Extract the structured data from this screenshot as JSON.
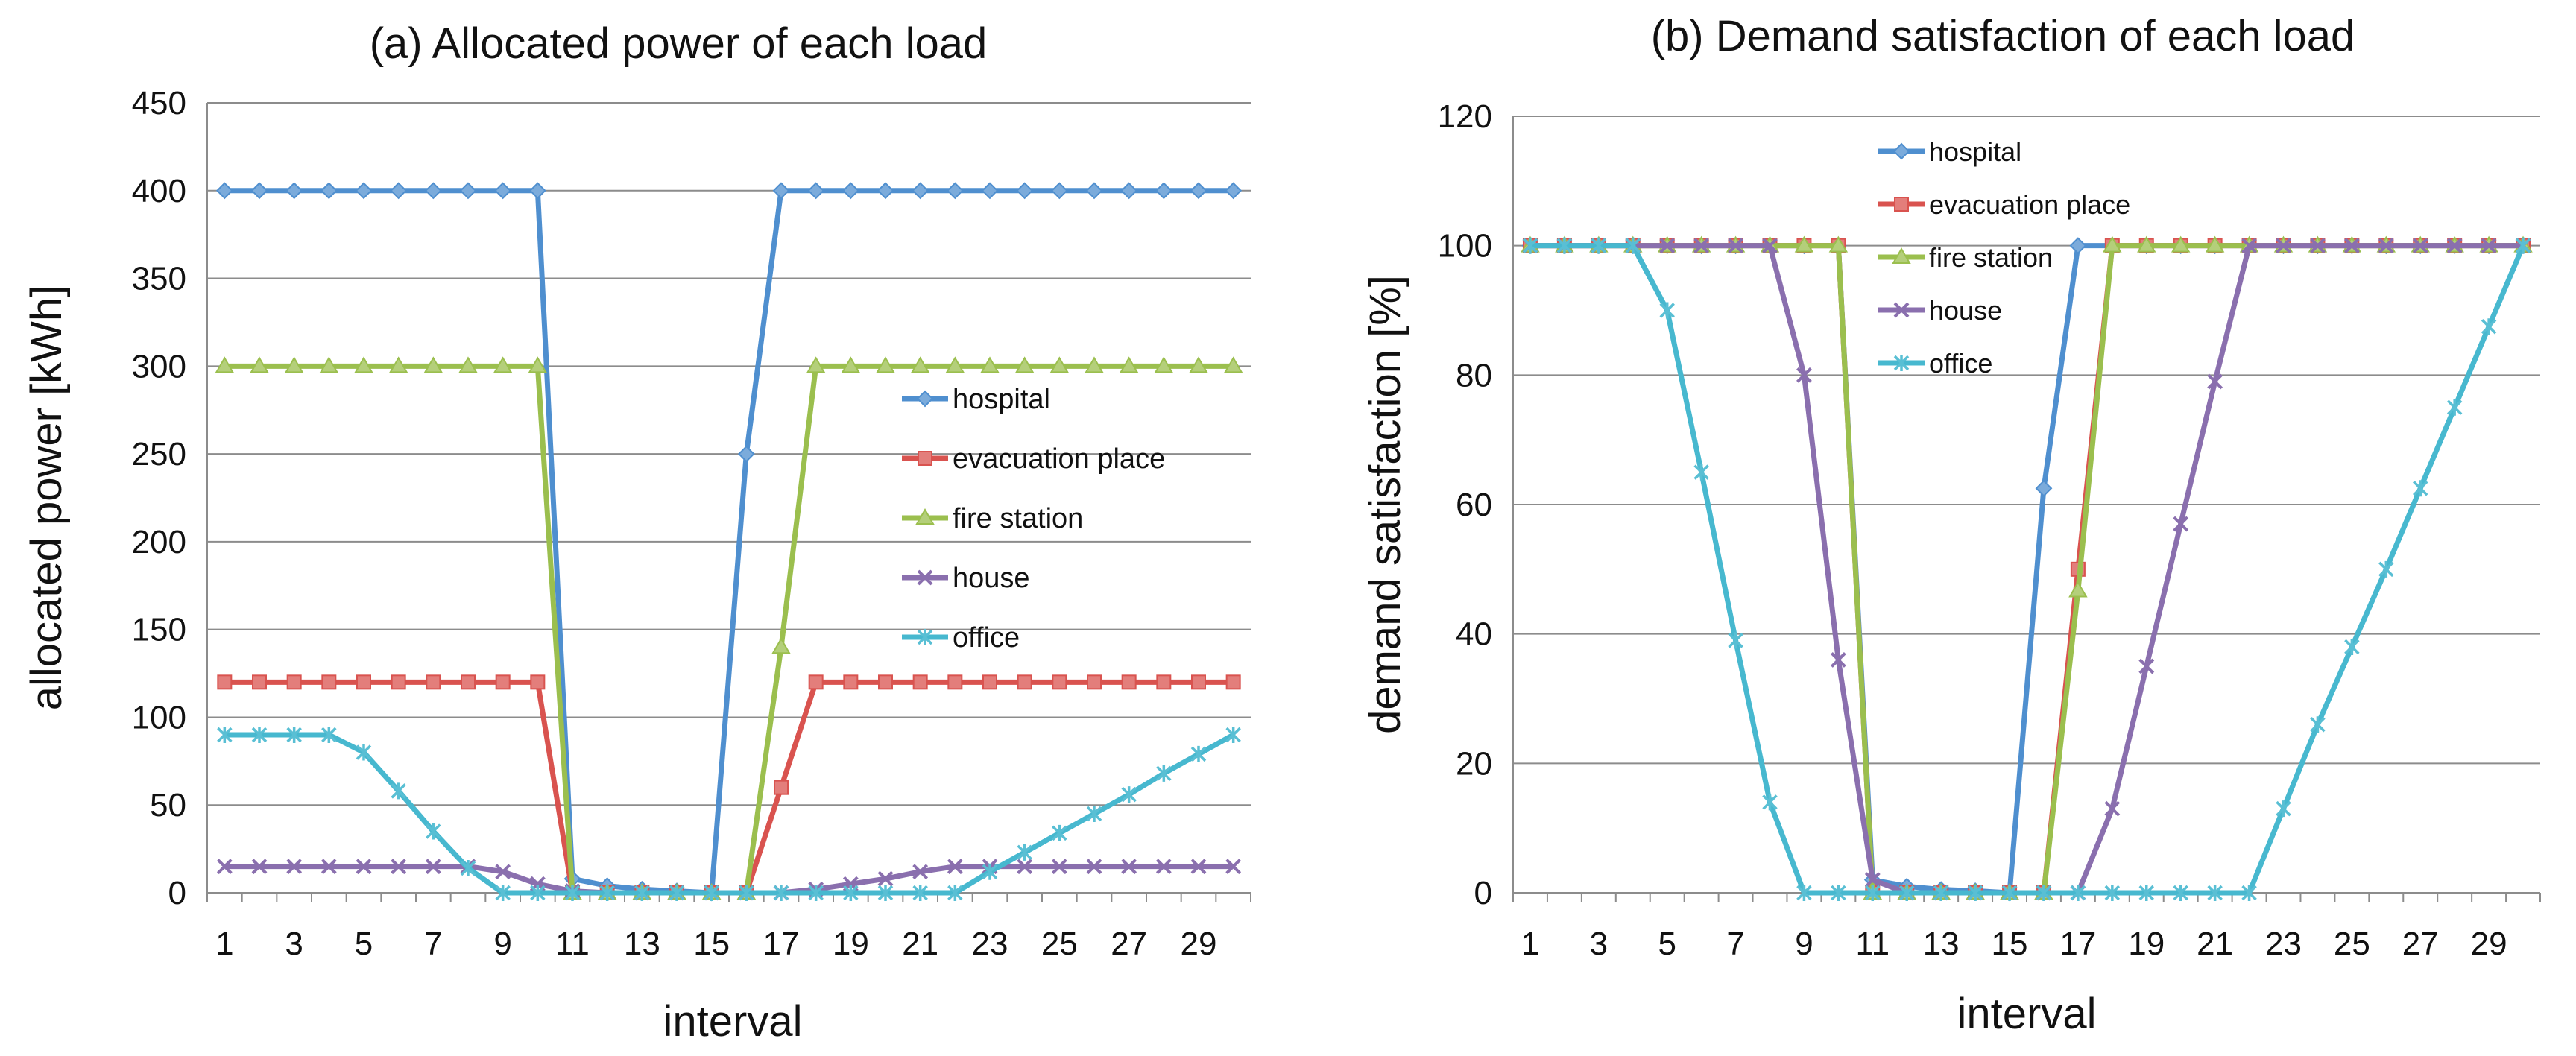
{
  "chart_data": [
    {
      "type": "line",
      "title": "(a) Allocated power of each load",
      "xlabel": "interval",
      "ylabel": "allocated power  [kWh]",
      "ylim": [
        0,
        450
      ],
      "yticks": [
        0,
        50,
        100,
        150,
        200,
        250,
        300,
        350,
        400,
        450
      ],
      "x": [
        1,
        2,
        3,
        4,
        5,
        6,
        7,
        8,
        9,
        10,
        11,
        12,
        13,
        14,
        15,
        16,
        17,
        18,
        19,
        20,
        21,
        22,
        23,
        24,
        25,
        26,
        27,
        28,
        29,
        30
      ],
      "xtick_labels": [
        "1",
        "3",
        "5",
        "7",
        "9",
        "11",
        "13",
        "15",
        "17",
        "19",
        "21",
        "23",
        "25",
        "27",
        "29"
      ],
      "grid": true,
      "legend_position": "center-right",
      "series": [
        {
          "name": "hospital",
          "color": "#4f8fcf",
          "marker": "diamond",
          "values": [
            400,
            400,
            400,
            400,
            400,
            400,
            400,
            400,
            400,
            400,
            8,
            4,
            2,
            1,
            0,
            250,
            400,
            400,
            400,
            400,
            400,
            400,
            400,
            400,
            400,
            400,
            400,
            400,
            400,
            400
          ]
        },
        {
          "name": "evacuation place",
          "color": "#d9534f",
          "marker": "square",
          "values": [
            120,
            120,
            120,
            120,
            120,
            120,
            120,
            120,
            120,
            120,
            0,
            0,
            0,
            0,
            0,
            0,
            60,
            120,
            120,
            120,
            120,
            120,
            120,
            120,
            120,
            120,
            120,
            120,
            120,
            120
          ]
        },
        {
          "name": "fire station",
          "color": "#9bbf4e",
          "marker": "triangle",
          "values": [
            300,
            300,
            300,
            300,
            300,
            300,
            300,
            300,
            300,
            300,
            0,
            0,
            0,
            0,
            0,
            0,
            140,
            300,
            300,
            300,
            300,
            300,
            300,
            300,
            300,
            300,
            300,
            300,
            300,
            300
          ]
        },
        {
          "name": "house",
          "color": "#8a6fae",
          "marker": "x",
          "values": [
            15,
            15,
            15,
            15,
            15,
            15,
            15,
            15,
            12,
            5,
            1,
            0,
            0,
            0,
            0,
            0,
            0,
            2,
            5,
            8,
            12,
            15,
            15,
            15,
            15,
            15,
            15,
            15,
            15,
            15
          ]
        },
        {
          "name": "office",
          "color": "#47b8cf",
          "marker": "star",
          "values": [
            90,
            90,
            90,
            90,
            80,
            58,
            35,
            14,
            0,
            0,
            0,
            0,
            0,
            0,
            0,
            0,
            0,
            0,
            0,
            0,
            0,
            0,
            12,
            23,
            34,
            45,
            56,
            68,
            79,
            90
          ]
        }
      ]
    },
    {
      "type": "line",
      "title": "(b) Demand satisfaction of each load",
      "xlabel": "interval",
      "ylabel": "demand satisfaction [%]",
      "ylim": [
        0,
        120
      ],
      "yticks": [
        0,
        20,
        40,
        60,
        80,
        100,
        120
      ],
      "x": [
        1,
        2,
        3,
        4,
        5,
        6,
        7,
        8,
        9,
        10,
        11,
        12,
        13,
        14,
        15,
        16,
        17,
        18,
        19,
        20,
        21,
        22,
        23,
        24,
        25,
        26,
        27,
        28,
        29,
        30
      ],
      "xtick_labels": [
        "1",
        "3",
        "5",
        "7",
        "9",
        "11",
        "13",
        "15",
        "17",
        "19",
        "21",
        "23",
        "25",
        "27",
        "29"
      ],
      "grid": true,
      "legend_position": "top-center",
      "series": [
        {
          "name": "hospital",
          "color": "#4f8fcf",
          "marker": "diamond",
          "values": [
            100,
            100,
            100,
            100,
            100,
            100,
            100,
            100,
            100,
            100,
            2,
            1,
            0.5,
            0.3,
            0,
            62.5,
            100,
            100,
            100,
            100,
            100,
            100,
            100,
            100,
            100,
            100,
            100,
            100,
            100,
            100
          ]
        },
        {
          "name": "evacuation place",
          "color": "#d9534f",
          "marker": "square",
          "values": [
            100,
            100,
            100,
            100,
            100,
            100,
            100,
            100,
            100,
            100,
            0,
            0,
            0,
            0,
            0,
            0,
            50,
            100,
            100,
            100,
            100,
            100,
            100,
            100,
            100,
            100,
            100,
            100,
            100,
            100
          ]
        },
        {
          "name": "fire station",
          "color": "#9bbf4e",
          "marker": "triangle",
          "values": [
            100,
            100,
            100,
            100,
            100,
            100,
            100,
            100,
            100,
            100,
            0,
            0,
            0,
            0,
            0,
            0,
            46.7,
            100,
            100,
            100,
            100,
            100,
            100,
            100,
            100,
            100,
            100,
            100,
            100,
            100
          ]
        },
        {
          "name": "house",
          "color": "#8a6fae",
          "marker": "x",
          "values": [
            100,
            100,
            100,
            100,
            100,
            100,
            100,
            100,
            80,
            36,
            2,
            0,
            0,
            0,
            0,
            0,
            0,
            13,
            35,
            57,
            79,
            100,
            100,
            100,
            100,
            100,
            100,
            100,
            100,
            100
          ]
        },
        {
          "name": "office",
          "color": "#47b8cf",
          "marker": "star",
          "values": [
            100,
            100,
            100,
            100,
            90,
            65,
            39,
            14,
            0,
            0,
            0,
            0,
            0,
            0,
            0,
            0,
            0,
            0,
            0,
            0,
            0,
            0,
            13,
            26,
            38,
            50,
            62.5,
            75,
            87.5,
            100
          ]
        }
      ]
    }
  ]
}
